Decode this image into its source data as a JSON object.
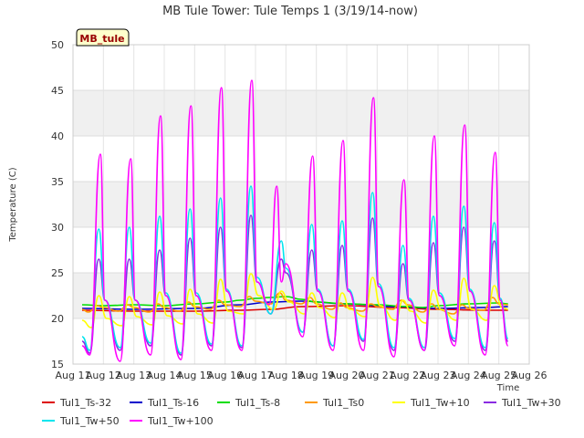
{
  "chart_data": {
    "type": "line",
    "title": "MB Tule Tower: Tule Temps 1 (3/19/14-now)",
    "xlabel": "Time",
    "ylabel": "Temperature (C)",
    "badge": "MB_tule",
    "ylim": [
      15,
      50
    ],
    "yticks": [
      15,
      20,
      25,
      30,
      35,
      40,
      45,
      50
    ],
    "xlim": [
      11,
      26
    ],
    "xticks": [
      {
        "x": 11,
        "label": "Aug 11"
      },
      {
        "x": 12,
        "label": "Aug 12"
      },
      {
        "x": 13,
        "label": "Aug 13"
      },
      {
        "x": 14,
        "label": "Aug 14"
      },
      {
        "x": 15,
        "label": "Aug 15"
      },
      {
        "x": 16,
        "label": "Aug 16"
      },
      {
        "x": 17,
        "label": "Aug 17"
      },
      {
        "x": 18,
        "label": "Aug 18"
      },
      {
        "x": 19,
        "label": "Aug 19"
      },
      {
        "x": 20,
        "label": "Aug 20"
      },
      {
        "x": 21,
        "label": "Aug 21"
      },
      {
        "x": 22,
        "label": "Aug 22"
      },
      {
        "x": 23,
        "label": "Aug 23"
      },
      {
        "x": 24,
        "label": "Aug 24"
      },
      {
        "x": 25,
        "label": "Aug 25"
      },
      {
        "x": 26,
        "label": "Aug 26"
      }
    ],
    "grid": true,
    "legend_position": "bottom",
    "series": [
      {
        "name": "Tul1_Ts-32",
        "color": "#dd0000",
        "x": [
          11.3,
          13,
          15,
          16.5,
          17.5,
          18.5,
          20,
          21.5,
          23,
          24.5,
          25.3
        ],
        "y": [
          20.9,
          20.8,
          20.8,
          20.9,
          21.0,
          21.3,
          21.4,
          21.2,
          21.0,
          20.9,
          20.9
        ]
      },
      {
        "name": "Tul1_Ts-16",
        "color": "#0000cc",
        "x": [
          11.3,
          13,
          15,
          16.5,
          17.5,
          18.5,
          20,
          21.5,
          23,
          24.5,
          25.3
        ],
        "y": [
          21.1,
          21.0,
          21.1,
          21.5,
          21.8,
          21.9,
          21.6,
          21.3,
          21.1,
          21.2,
          21.3
        ]
      },
      {
        "name": "Tul1_Ts-8",
        "color": "#00dd00",
        "x": [
          11.3,
          12,
          13,
          14,
          15,
          16,
          16.5,
          17,
          17.5,
          18,
          18.5,
          19,
          20,
          21,
          22,
          22.5,
          23,
          24,
          25,
          25.3
        ],
        "y": [
          21.5,
          21.4,
          21.5,
          21.4,
          21.6,
          21.8,
          22.0,
          22.2,
          22.3,
          22.4,
          22.1,
          21.8,
          21.6,
          21.5,
          21.3,
          21.2,
          21.4,
          21.6,
          21.7,
          21.6
        ]
      },
      {
        "name": "Tul1_Ts0",
        "color": "#ff9900",
        "x": [
          11.3,
          11.5,
          11.8,
          12,
          12.5,
          12.8,
          13,
          13.5,
          13.8,
          14,
          14.5,
          14.8,
          15,
          15.5,
          15.8,
          16,
          16.5,
          16.8,
          17,
          17.5,
          17.8,
          18,
          18.5,
          18.8,
          19,
          19.5,
          19.8,
          20,
          20.5,
          20.8,
          21,
          21.5,
          21.8,
          22,
          22.5,
          22.8,
          23,
          23.5,
          23.8,
          24,
          24.5,
          24.8,
          25,
          25.3
        ],
        "y": [
          21.0,
          20.7,
          21.4,
          21.2,
          20.8,
          21.5,
          21.2,
          20.7,
          21.6,
          21.2,
          20.8,
          21.8,
          21.3,
          21.0,
          22.0,
          21.5,
          21.3,
          22.4,
          21.9,
          21.6,
          22.8,
          22.0,
          21.6,
          22.3,
          21.6,
          21.0,
          21.7,
          21.2,
          20.8,
          21.6,
          21.3,
          21.0,
          22.0,
          21.5,
          20.7,
          21.6,
          21.0,
          20.5,
          21.5,
          21.1,
          20.9,
          22.3,
          21.6,
          21.5
        ]
      },
      {
        "name": "Tul1_Tw+10",
        "color": "#ffff00",
        "x": [
          11.3,
          11.6,
          11.85,
          12.1,
          12.6,
          12.85,
          13.1,
          13.6,
          13.85,
          14.1,
          14.6,
          14.85,
          15.1,
          15.6,
          15.85,
          16.1,
          16.6,
          16.85,
          17.1,
          17.6,
          17.85,
          18.1,
          18.6,
          18.85,
          19.1,
          19.6,
          19.85,
          20.1,
          20.6,
          20.85,
          21.1,
          21.6,
          21.85,
          22.1,
          22.6,
          22.85,
          23.1,
          23.6,
          23.85,
          24.1,
          24.6,
          24.85,
          25.1,
          25.3
        ],
        "y": [
          19.8,
          19.0,
          22.5,
          20.0,
          19.2,
          22.4,
          20.2,
          19.3,
          22.9,
          20.3,
          19.4,
          23.2,
          20.5,
          19.5,
          24.3,
          20.8,
          20.5,
          24.9,
          22.5,
          21.0,
          23.0,
          21.8,
          20.5,
          22.8,
          21.2,
          20.1,
          22.8,
          21.0,
          20.2,
          24.5,
          21.4,
          19.8,
          22.0,
          20.8,
          19.5,
          23.1,
          21.0,
          19.8,
          24.4,
          21.0,
          19.8,
          23.6,
          21.2,
          21.0
        ]
      },
      {
        "name": "Tul1_Tw+30",
        "color": "#8a2be2",
        "x": [
          11.3,
          11.55,
          11.85,
          12.05,
          12.55,
          12.85,
          13.05,
          13.55,
          13.85,
          14.05,
          14.55,
          14.85,
          15.05,
          15.55,
          15.85,
          16.05,
          16.55,
          16.85,
          17.05,
          17.5,
          17.85,
          18.0,
          18.55,
          18.85,
          19.05,
          19.55,
          19.85,
          20.05,
          20.55,
          20.85,
          21.05,
          21.55,
          21.85,
          22.05,
          22.55,
          22.85,
          23.05,
          23.55,
          23.85,
          24.05,
          24.55,
          24.85,
          25.05,
          25.3
        ],
        "y": [
          17.5,
          16.2,
          26.5,
          22.0,
          16.5,
          26.5,
          22.0,
          17.0,
          27.5,
          22.5,
          16.0,
          28.8,
          22.5,
          17.0,
          30.0,
          23.0,
          16.8,
          31.3,
          24.0,
          20.5,
          26.5,
          25.0,
          18.5,
          27.5,
          23.0,
          17.0,
          28.0,
          23.0,
          17.5,
          31.0,
          23.5,
          16.5,
          26.0,
          22.0,
          16.5,
          28.3,
          22.5,
          17.5,
          30.0,
          23.0,
          16.5,
          28.5,
          22.0,
          17.5
        ]
      },
      {
        "name": "Tul1_Tw+50",
        "color": "#00e5ee",
        "x": [
          11.3,
          11.55,
          11.85,
          12.05,
          12.55,
          12.85,
          13.05,
          13.55,
          13.85,
          14.05,
          14.55,
          14.85,
          15.05,
          15.55,
          15.85,
          16.05,
          16.55,
          16.85,
          17.05,
          17.5,
          17.85,
          18.0,
          18.55,
          18.85,
          19.05,
          19.55,
          19.85,
          20.05,
          20.55,
          20.85,
          21.05,
          21.55,
          21.85,
          22.05,
          22.55,
          22.85,
          23.05,
          23.55,
          23.85,
          24.05,
          24.55,
          24.85,
          25.05,
          25.3
        ],
        "y": [
          18.0,
          16.5,
          29.8,
          22.0,
          16.8,
          30.0,
          22.0,
          17.3,
          31.2,
          22.8,
          16.2,
          32.0,
          22.8,
          17.2,
          33.2,
          23.2,
          17.0,
          34.5,
          24.5,
          20.5,
          28.5,
          25.5,
          18.5,
          30.3,
          23.2,
          17.0,
          30.7,
          23.2,
          17.7,
          33.8,
          23.8,
          16.8,
          28.0,
          22.2,
          16.8,
          31.2,
          22.8,
          17.8,
          32.3,
          23.2,
          16.8,
          30.5,
          22.2,
          17.8
        ]
      },
      {
        "name": "Tul1_Tw+100",
        "color": "#ff00ff",
        "x": [
          11.3,
          11.55,
          11.9,
          12.05,
          12.55,
          12.9,
          13.05,
          13.55,
          13.88,
          14.05,
          14.55,
          14.88,
          15.05,
          15.55,
          15.88,
          16.05,
          16.55,
          16.88,
          17.05,
          17.45,
          17.7,
          17.85,
          18.0,
          18.55,
          18.88,
          19.05,
          19.55,
          19.88,
          20.05,
          20.55,
          20.88,
          21.05,
          21.55,
          21.88,
          22.05,
          22.55,
          22.88,
          23.05,
          23.55,
          23.88,
          24.05,
          24.55,
          24.88,
          25.05,
          25.3
        ],
        "y": [
          17.0,
          16.0,
          38.0,
          22.0,
          15.3,
          37.5,
          22.0,
          16.0,
          42.2,
          22.5,
          15.5,
          43.3,
          22.5,
          16.5,
          45.3,
          23.0,
          16.5,
          46.1,
          24.0,
          21.5,
          34.5,
          24.0,
          26.0,
          18.0,
          37.8,
          23.0,
          16.5,
          39.5,
          23.0,
          16.5,
          44.2,
          23.5,
          15.8,
          35.2,
          22.0,
          16.5,
          40.0,
          22.5,
          17.0,
          41.2,
          23.0,
          16.0,
          38.2,
          22.0,
          17.0
        ]
      }
    ]
  }
}
